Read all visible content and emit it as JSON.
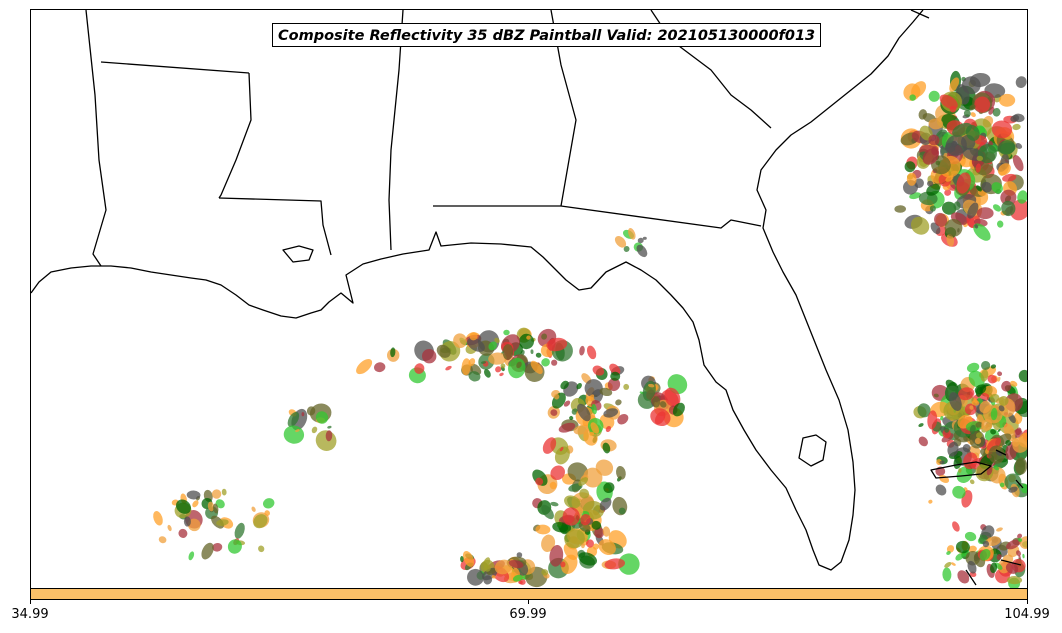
{
  "title": "Composite Reflectivity 35 dBZ Paintball Valid: 202105130000f013",
  "colorbar": {
    "color": "#fbc068",
    "ticks": [
      "34.99",
      "69.99",
      "104.99"
    ]
  },
  "map": {
    "region": "U.S. Gulf Coast and Southeast with Gulf of Mexico",
    "paintball_colors": [
      "#a8323c",
      "#eb3434",
      "#f0a03c",
      "#ffa028",
      "#32c832",
      "#327832",
      "#a0a028",
      "#646428",
      "#505050",
      "#006400"
    ]
  }
}
